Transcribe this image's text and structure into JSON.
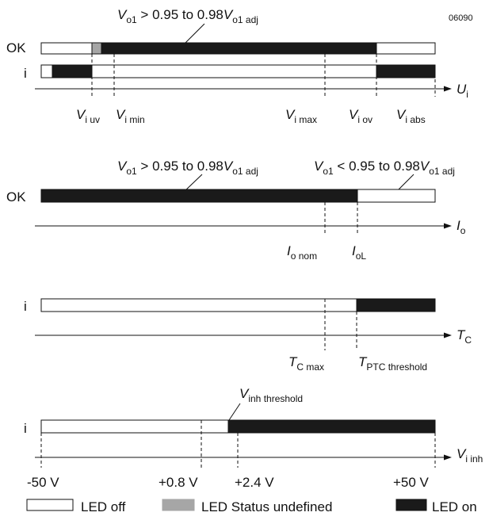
{
  "figure_id": "06090",
  "legend": {
    "off": "LED off",
    "undefined": "LED Status undefined",
    "on": "LED on"
  },
  "colors": {
    "on": "#1a1a1a",
    "off": "#ffffff",
    "undefined": "#a6a6a6",
    "line": "#111111"
  },
  "panel1": {
    "top_label": {
      "main": "V",
      "sub1": "o1",
      "mid": " > 0.95 to 0.98",
      "main2": "V",
      "sub2": "o1 adj"
    },
    "row_ok": "OK",
    "row_i": "i",
    "axis": {
      "main": "U",
      "sub": "i"
    },
    "ticks": [
      {
        "main": "V",
        "sub": "i uv"
      },
      {
        "main": "V",
        "sub": "i min"
      },
      {
        "main": "V",
        "sub": "i max"
      },
      {
        "main": "V",
        "sub": "i ov"
      },
      {
        "main": "V",
        "sub": "i abs"
      }
    ]
  },
  "panel2": {
    "label_left": {
      "main": "V",
      "sub1": "o1",
      "mid": " > 0.95 to 0.98",
      "main2": "V",
      "sub2": "o1 adj"
    },
    "label_right": {
      "main": "V",
      "sub1": "o1",
      "mid": " < 0.95 to 0.98",
      "main2": "V",
      "sub2": "o1 adj"
    },
    "row_ok": "OK",
    "axis": {
      "main": "I",
      "sub": "o"
    },
    "ticks": [
      {
        "main": "I",
        "sub": "o nom"
      },
      {
        "main": "I",
        "sub": "oL"
      }
    ]
  },
  "panel3": {
    "row_i": "i",
    "axis": {
      "main": "T",
      "sub": "C"
    },
    "ticks": [
      {
        "main": "T",
        "sub": "C max"
      },
      {
        "main": "T",
        "sub": "PTC threshold"
      }
    ]
  },
  "panel4": {
    "row_i": "i",
    "threshold_label": {
      "main": "V",
      "sub": "inh threshold"
    },
    "axis": {
      "main": "V",
      "sub": "i inh"
    },
    "ticks": [
      "-50 V",
      "+0.8 V",
      "+2.4 V",
      "+50 V"
    ]
  }
}
